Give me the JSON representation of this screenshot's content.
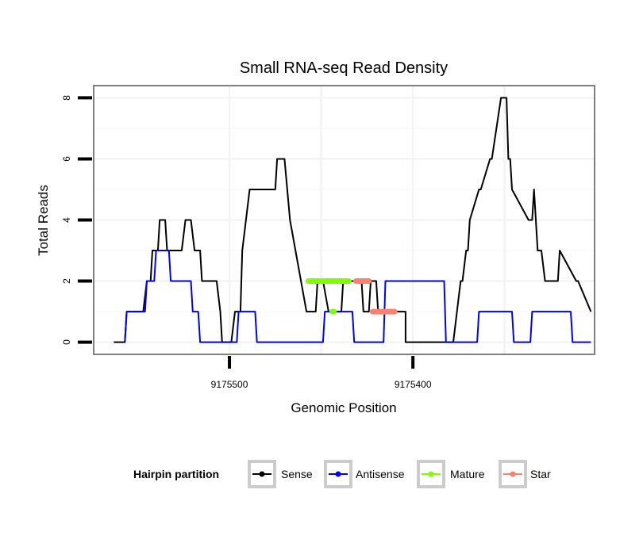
{
  "chart_data": {
    "type": "line",
    "title": "Small RNA-seq Read Density",
    "xlabel": "Genomic Position",
    "ylabel": "Total Reads",
    "x_reversed": true,
    "xlim": [
      9175574,
      9175301
    ],
    "ylim": [
      -0.4,
      8.4
    ],
    "x_ticks": [
      9175500,
      9175400
    ],
    "x_tick_labels": [
      "9175500",
      "9175400"
    ],
    "y_ticks": [
      0,
      2,
      4,
      6,
      8
    ],
    "y_tick_labels": [
      "0",
      "2",
      "4",
      "6",
      "8"
    ],
    "grid": true,
    "legend": {
      "title": "Hairpin partition",
      "position": "bottom",
      "entries": [
        {
          "name": "Sense",
          "color": "#000000"
        },
        {
          "name": "Antisense",
          "color": "#0000ff"
        },
        {
          "name": "Mature",
          "color": "#7fff00"
        },
        {
          "name": "Star",
          "color": "#fa8072"
        }
      ]
    },
    "series": [
      {
        "name": "Sense",
        "color": "#000000",
        "x": [
          9175563,
          9175557,
          9175556,
          9175547,
          9175545,
          9175543,
          9175542,
          9175539,
          9175538,
          9175535,
          9175534,
          9175526,
          9175524,
          9175521,
          9175519,
          9175516,
          9175515,
          9175507,
          9175505,
          9175504,
          9175502,
          9175499,
          9175497,
          9175494,
          9175493,
          9175489,
          9175488,
          9175475,
          9175474,
          9175470,
          9175467,
          9175467,
          9175458,
          9175456,
          9175453,
          9175452,
          9175449,
          9175446,
          9175445,
          9175445,
          9175439,
          9175438,
          9175438,
          9175436,
          9175428,
          9175427,
          9175424,
          9175423,
          9175420,
          9175419,
          9175416,
          9175404,
          9175404,
          9175380,
          9175378,
          9175374,
          9175373,
          9175371,
          9175370,
          9175369,
          9175364,
          9175363,
          9175358,
          9175357,
          9175352,
          9175351,
          9175349,
          9175348,
          9175347,
          9175346,
          9175337,
          9175336,
          9175335,
          9175334,
          9175332,
          9175330,
          9175328,
          9175327,
          9175321,
          9175320,
          9175311,
          9175310,
          9175303
        ],
        "y": [
          0,
          0,
          1,
          1,
          2,
          2,
          3,
          3,
          4,
          4,
          3,
          3,
          4,
          4,
          3,
          3,
          2,
          2,
          1,
          0,
          0,
          0,
          1,
          1,
          3,
          5,
          5,
          5,
          6,
          6,
          4,
          4,
          1,
          1,
          1,
          2,
          2,
          1,
          1,
          1,
          1,
          2,
          2,
          2,
          2,
          1,
          1,
          2,
          2,
          1,
          1,
          1,
          0,
          0,
          0,
          2,
          2,
          3,
          3,
          4,
          5,
          5,
          6,
          6,
          8,
          8,
          8,
          6,
          6,
          5,
          4,
          4,
          4,
          5,
          3,
          3,
          2,
          2,
          2,
          3,
          2,
          2,
          1
        ]
      },
      {
        "name": "Antisense",
        "color": "#0000ff",
        "x": [
          9175557,
          9175556,
          9175546,
          9175545,
          9175541,
          9175540,
          9175533,
          9175532,
          9175521,
          9175520,
          9175517,
          9175516,
          9175496,
          9175495,
          9175486,
          9175485,
          9175449,
          9175448,
          9175433,
          9175432,
          9175416,
          9175415,
          9175383,
          9175382,
          9175365,
          9175364,
          9175346,
          9175345,
          9175336,
          9175335,
          9175314,
          9175313,
          9175303
        ],
        "y": [
          0,
          1,
          1,
          2,
          2,
          3,
          3,
          2,
          2,
          1,
          1,
          0,
          0,
          1,
          1,
          0,
          0,
          1,
          1,
          0,
          0,
          2,
          2,
          0,
          0,
          1,
          1,
          0,
          0,
          1,
          1,
          0,
          0
        ]
      },
      {
        "name": "Mature",
        "color": "#7fff00",
        "segments": [
          {
            "x": [
              9175457,
              9175435
            ],
            "y": 2
          },
          {
            "x": [
              9175444,
              9175443
            ],
            "y": 1
          }
        ]
      },
      {
        "name": "Star",
        "color": "#fa8072",
        "segments": [
          {
            "x": [
              9175431,
              9175424
            ],
            "y": 2
          },
          {
            "x": [
              9175422,
              9175410
            ],
            "y": 1
          }
        ]
      }
    ]
  }
}
